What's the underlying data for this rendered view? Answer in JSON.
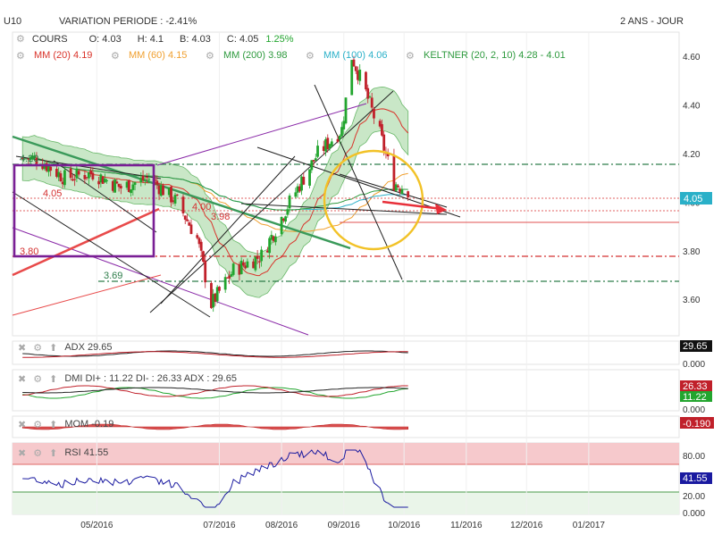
{
  "header": {
    "symbol": "U10",
    "variation": "VARIATION PERIODE : -2.41%",
    "period": "2 ANS - JOUR"
  },
  "legend_row1": {
    "cours": "COURS",
    "open": "O: 4.03",
    "high": "H: 4.1",
    "low": "B: 4.03",
    "close": "C: 4.05",
    "change": "1.25%"
  },
  "legend_row2": [
    {
      "label": "MM (20)",
      "value": "4.19",
      "color": "#d9342b"
    },
    {
      "label": "MM (60)",
      "value": "4.15",
      "color": "#f0a030"
    },
    {
      "label": "MM (200)",
      "value": "3.98",
      "color": "#2e9a3e"
    },
    {
      "label": "MM (100)",
      "value": "4.06",
      "color": "#2ab0c8"
    },
    {
      "label": "KELTNER (20, 2, 10)",
      "value": "4.28 - 4.01",
      "color": "#2e9a3e"
    }
  ],
  "annotations": {
    "level_420": "4.20",
    "level_405": "4.05",
    "level_400": "4.00",
    "level_398": "3.98",
    "level_380": "3.80",
    "level_369": "3.69",
    "price_badge": "4.05"
  },
  "indicators": {
    "adx": {
      "label": "ADX",
      "value": "29.65",
      "badge": "29.65",
      "zero": "0.000"
    },
    "dmi": {
      "label": "DMI",
      "text": "DI+ : 11.22 DI- : 26.33 ADX : 29.65",
      "badge_minus": "26.33",
      "badge_plus": "11.22",
      "zero": "0.000"
    },
    "mom": {
      "label": "MOM",
      "value": "-0.19",
      "badge": "-0.190"
    },
    "rsi": {
      "label": "RSI",
      "value": "41.55",
      "badge": "41.55",
      "upper": "80.00",
      "lower": "20.00",
      "zero": "0.000"
    }
  },
  "colors": {
    "candle_up": "#22a52e",
    "candle_down": "#c0202a",
    "keltner_fill": "#bfe3bd",
    "trend_green": "#3a9a5a",
    "purple": "#8a2aa8",
    "red_line": "#e84a4a",
    "yellow_circle": "#f2c227",
    "rsi_line": "#1a1aa0",
    "rsi_band": "#f6c9cc"
  },
  "chart_data": {
    "type": "candlestick",
    "x_labels": [
      "05/2016",
      "07/2016",
      "08/2016",
      "09/2016",
      "10/2016",
      "11/2016",
      "12/2016",
      "01/2017"
    ],
    "y_ticks": [
      3.6,
      3.8,
      4.0,
      4.2,
      4.4,
      4.6
    ],
    "ylim": [
      3.45,
      4.7
    ],
    "close_path": [
      {
        "date": "2016-04-01",
        "close": 4.18
      },
      {
        "date": "2016-04-15",
        "close": 4.1
      },
      {
        "date": "2016-04-29",
        "close": 4.12
      },
      {
        "date": "2016-05-13",
        "close": 4.06
      },
      {
        "date": "2016-05-27",
        "close": 4.1
      },
      {
        "date": "2016-06-10",
        "close": 4.0
      },
      {
        "date": "2016-06-20",
        "close": 3.85
      },
      {
        "date": "2016-06-27",
        "close": 3.58
      },
      {
        "date": "2016-07-08",
        "close": 3.72
      },
      {
        "date": "2016-07-22",
        "close": 3.78
      },
      {
        "date": "2016-08-05",
        "close": 4.0
      },
      {
        "date": "2016-08-19",
        "close": 4.2
      },
      {
        "date": "2016-08-31",
        "close": 4.3
      },
      {
        "date": "2016-09-05",
        "close": 4.6
      },
      {
        "date": "2016-09-12",
        "close": 4.45
      },
      {
        "date": "2016-09-19",
        "close": 4.28
      },
      {
        "date": "2016-09-26",
        "close": 4.08
      },
      {
        "date": "2016-10-03",
        "close": 4.05
      }
    ]
  }
}
